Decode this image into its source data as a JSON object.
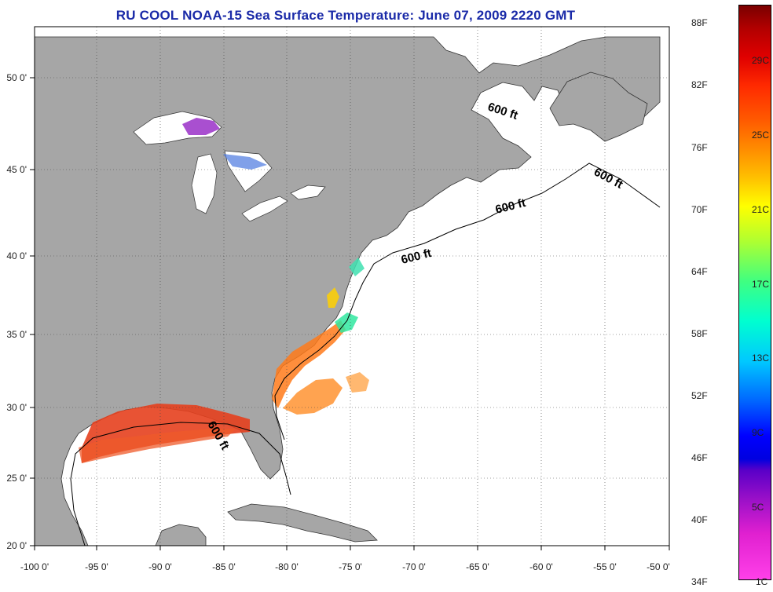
{
  "title": "RU COOL  NOAA-15  Sea Surface Temperature:  June 07, 2009 2220 GMT",
  "axes": {
    "x_ticks": [
      "-100 0'",
      "-95 0'",
      "-90 0'",
      "-85 0'",
      "-80 0'",
      "-75 0'",
      "-70 0'",
      "-65 0'",
      "-60 0'",
      "-55 0'",
      "-50 0'"
    ],
    "y_ticks": [
      "50 0'",
      "45 0'",
      "40 0'",
      "35 0'",
      "30 0'",
      "25 0'",
      "20 0'"
    ]
  },
  "contour_label": "600 ft",
  "colorbar": {
    "fahrenheit": [
      "88F",
      "82F",
      "76F",
      "70F",
      "64F",
      "58F",
      "52F",
      "46F",
      "40F",
      "34F"
    ],
    "celsius": [
      "29C",
      "25C",
      "21C",
      "17C",
      "13C",
      "9C",
      "5C",
      "1C"
    ]
  },
  "colors": {
    "land": "#a6a6a6",
    "ocean": "#ffffff",
    "title": "#1a2aa8"
  }
}
